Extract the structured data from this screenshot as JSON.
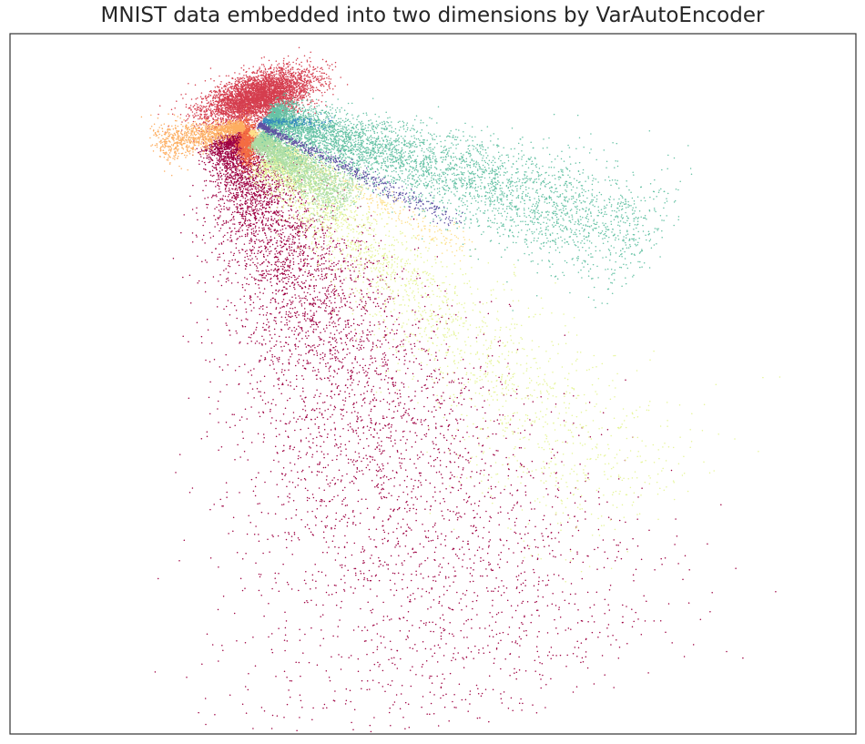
{
  "chart_data": {
    "type": "scatter",
    "title": "MNIST data embedded into two dimensions by VarAutoEncoder",
    "xlabel": "",
    "ylabel": "",
    "x_ticks_shown": false,
    "y_ticks_shown": false,
    "grid": false,
    "legend": "none",
    "xlim": [
      0,
      100
    ],
    "ylim": [
      0,
      100
    ],
    "colormap": "Spectral",
    "series": [
      {
        "color": "#9e0142",
        "shape": "plume",
        "start": [
          26.0,
          85.0
        ],
        "end": [
          58.0,
          6.0
        ],
        "spread_start": 3.0,
        "spread_end": 30.0,
        "count": 6500
      },
      {
        "color": "#d53e4f",
        "shape": "blob",
        "center": [
          29.5,
          91.0
        ],
        "extent": [
          6.0,
          2.8
        ],
        "angle_deg": 22,
        "count": 4500
      },
      {
        "color": "#f46d43",
        "shape": "blob",
        "center": [
          28.0,
          84.5
        ],
        "extent": [
          1.0,
          2.8
        ],
        "angle_deg": 0,
        "count": 900
      },
      {
        "color": "#fdae61",
        "shape": "plume",
        "start": [
          27.5,
          86.8
        ],
        "end": [
          17.5,
          84.0
        ],
        "spread_start": 0.6,
        "spread_end": 3.5,
        "count": 1400
      },
      {
        "color": "#fee08b",
        "shape": "plume",
        "start": [
          28.5,
          86.0
        ],
        "end": [
          54.0,
          69.0
        ],
        "spread_start": 0.5,
        "spread_end": 2.5,
        "count": 500
      },
      {
        "color": "#e6f598",
        "shape": "plume",
        "start": [
          31.0,
          82.0
        ],
        "end": [
          74.0,
          32.0
        ],
        "spread_start": 3.0,
        "spread_end": 14.0,
        "count": 2600
      },
      {
        "color": "#abdda4",
        "shape": "plume",
        "start": [
          29.5,
          85.0
        ],
        "end": [
          40.0,
          76.0
        ],
        "spread_start": 1.5,
        "spread_end": 4.0,
        "count": 2500
      },
      {
        "color": "#66c2a5",
        "shape": "plume",
        "start": [
          31.0,
          88.0
        ],
        "end": [
          76.0,
          71.0
        ],
        "spread_start": 2.5,
        "spread_end": 10.0,
        "count": 5000
      },
      {
        "color": "#3288bd",
        "shape": "plume",
        "start": [
          30.0,
          87.5
        ],
        "end": [
          38.0,
          87.2
        ],
        "spread_start": 0.4,
        "spread_end": 1.0,
        "count": 200
      },
      {
        "color": "#5e4fa2",
        "shape": "plume",
        "start": [
          29.5,
          87.0
        ],
        "end": [
          53.0,
          73.0
        ],
        "spread_start": 0.4,
        "spread_end": 1.6,
        "count": 650
      }
    ]
  }
}
